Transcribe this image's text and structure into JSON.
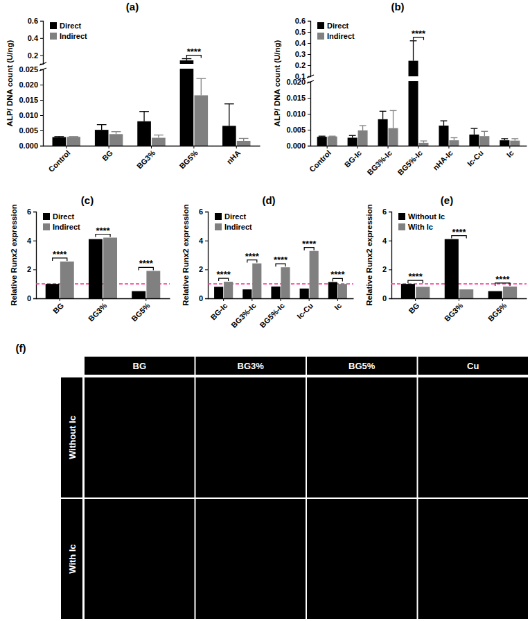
{
  "chart_data": [
    {
      "type": "bar",
      "panel_label": "(a)",
      "y_label": "ALP/ DNA count (U/ng)",
      "categories": [
        "Control",
        "BG",
        "BG3%",
        "BG5%",
        "nHA"
      ],
      "series": [
        {
          "name": "Direct",
          "color": "#000000",
          "values": [
            0.0028,
            0.0052,
            0.008,
            0.14,
            0.0065
          ],
          "errors": [
            0.0002,
            0.0017,
            0.0032,
            0.02,
            0.0072
          ]
        },
        {
          "name": "Indirect",
          "color": "#808080",
          "values": [
            0.0029,
            0.0038,
            0.0026,
            0.0165,
            0.0016
          ],
          "errors": [
            0.0001,
            0.0008,
            0.0009,
            0.0055,
            0.0008
          ]
        }
      ],
      "ylim": [
        0,
        0.6
      ],
      "y_break": [
        0.025,
        0.1
      ],
      "yticks": [
        {
          "value": 0,
          "label": "0.000"
        },
        {
          "value": 0.005,
          "label": "0.005"
        },
        {
          "value": 0.01,
          "label": "0.010"
        },
        {
          "value": 0.015,
          "label": "0.015"
        },
        {
          "value": 0.02,
          "label": "0.020"
        },
        {
          "value": 0.025,
          "label": "0.025"
        },
        0.2,
        0.4,
        0.6
      ],
      "legend": "upper left",
      "annotations": [
        {
          "category": "BG5%",
          "text": "****"
        }
      ]
    },
    {
      "type": "bar",
      "panel_label": "(b)",
      "y_label": "ALP/ DNA count (U/ng)",
      "categories": [
        "Control",
        "BG-Ic",
        "BG3%-Ic",
        "BG5%-Ic",
        "nHA-Ic",
        "Ic-Cu",
        "Ic"
      ],
      "series": [
        {
          "name": "Direct",
          "color": "#000000",
          "values": [
            0.0028,
            0.0025,
            0.0083,
            0.24,
            0.0063,
            0.0035,
            0.0017
          ],
          "errors": [
            0.0002,
            0.0007,
            0.0025,
            0.18,
            0.0015,
            0.0019,
            0.0005
          ]
        },
        {
          "name": "Indirect",
          "color": "#808080",
          "values": [
            0.0029,
            0.0048,
            0.0055,
            0.0009,
            0.0017,
            0.003,
            0.0016
          ],
          "errors": [
            0.0001,
            0.0015,
            0.0055,
            0.0006,
            0.0008,
            0.0015,
            0.0006
          ]
        }
      ],
      "ylim": [
        0,
        0.6
      ],
      "y_break": [
        0.02,
        0.1
      ],
      "yticks": [
        {
          "value": 0,
          "label": "0.000"
        },
        {
          "value": 0.005,
          "label": "0.005"
        },
        {
          "value": 0.01,
          "label": "0.010"
        },
        {
          "value": 0.015,
          "label": "0.015"
        },
        {
          "value": 0.02,
          "label": "0.020"
        },
        0.1,
        0.2,
        0.3,
        0.4,
        0.5,
        0.6
      ],
      "legend": "upper left",
      "annotations": [
        {
          "category": "BG5%-Ic",
          "text": "****"
        }
      ]
    },
    {
      "type": "bar",
      "panel_label": "(c)",
      "y_label": "Relative Runx2 expression",
      "categories": [
        "BG",
        "BG3%",
        "BG5%"
      ],
      "series": [
        {
          "name": "Direct",
          "color": "#000000",
          "values": [
            1.0,
            4.1,
            0.5
          ]
        },
        {
          "name": "Indirect",
          "color": "#808080",
          "values": [
            2.55,
            4.2,
            1.9
          ]
        }
      ],
      "ylim": [
        0,
        6
      ],
      "yticks": [
        0,
        2,
        4,
        6
      ],
      "reference_line": 1,
      "legend": "upper left",
      "annotations": [
        {
          "category": "BG",
          "text": "****"
        },
        {
          "category": "BG3%",
          "text": "****"
        },
        {
          "category": "BG5%",
          "text": "****"
        }
      ]
    },
    {
      "type": "bar",
      "panel_label": "(d)",
      "y_label": "Relative Runx2 expression",
      "categories": [
        "BG-Ic",
        "BG3%-Ic",
        "BG5%-Ic",
        "Ic-Cu",
        "Ic"
      ],
      "series": [
        {
          "name": "Direct",
          "color": "#000000",
          "values": [
            0.8,
            0.62,
            0.82,
            0.68,
            1.13
          ]
        },
        {
          "name": "Indirect",
          "color": "#808080",
          "values": [
            1.15,
            2.42,
            2.15,
            3.28,
            1.0
          ]
        }
      ],
      "ylim": [
        0,
        6
      ],
      "yticks": [
        0,
        2,
        4,
        6
      ],
      "reference_line": 1,
      "legend": "upper left",
      "annotations": [
        {
          "category": "BG-Ic",
          "text": "****"
        },
        {
          "category": "BG3%-Ic",
          "text": "****"
        },
        {
          "category": "BG5%-Ic",
          "text": "****"
        },
        {
          "category": "Ic-Cu",
          "text": "****"
        },
        {
          "category": "Ic",
          "text": "****"
        }
      ]
    },
    {
      "type": "bar",
      "panel_label": "(e)",
      "y_label": "Relative Runx2 expression",
      "categories": [
        "BG",
        "BG3%",
        "BG5%"
      ],
      "series": [
        {
          "name": "Without Ic",
          "color": "#000000",
          "values": [
            1.0,
            4.1,
            0.5
          ]
        },
        {
          "name": "With Ic",
          "color": "#808080",
          "values": [
            0.8,
            0.62,
            0.82
          ]
        }
      ],
      "ylim": [
        0,
        6
      ],
      "yticks": [
        0,
        2,
        4,
        6
      ],
      "reference_line": 1,
      "legend": "upper left",
      "annotations": [
        {
          "category": "BG",
          "text": "****"
        },
        {
          "category": "BG3%",
          "text": "****"
        },
        {
          "category": "BG5%",
          "text": "****"
        }
      ]
    }
  ],
  "image_panel": {
    "label": "(f)",
    "columns": [
      "BG",
      "BG3%",
      "BG5%",
      "Cu"
    ],
    "rows": [
      "Without Ic",
      "With Ic"
    ]
  }
}
